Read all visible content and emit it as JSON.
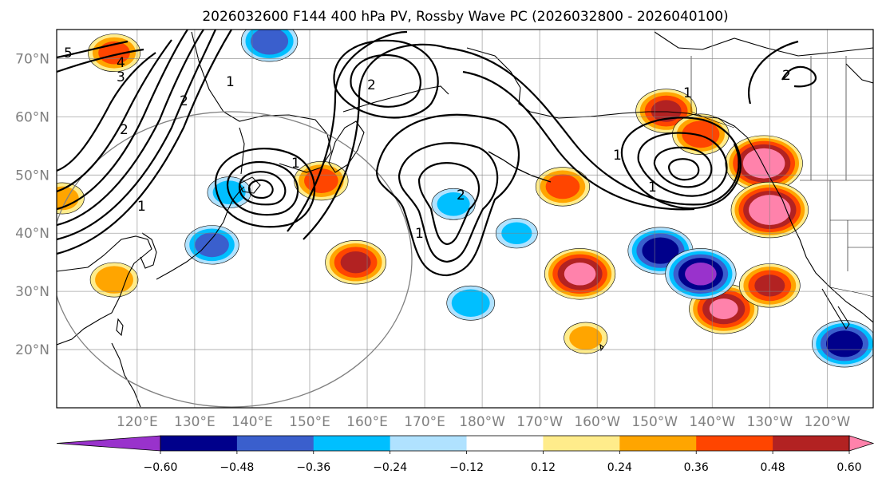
{
  "chart_data": {
    "type": "contour-map",
    "title": "2026032600 F144 400 hPa PV, Rossby Wave PC (2026032800 - 2026040100)",
    "projection": "plate-carree",
    "extent": {
      "lon": [
        106,
        248
      ],
      "lat": [
        10,
        75
      ]
    },
    "lat_ticks": [
      {
        "value": 70,
        "label": "70°N"
      },
      {
        "value": 60,
        "label": "60°N"
      },
      {
        "value": 50,
        "label": "50°N"
      },
      {
        "value": 40,
        "label": "40°N"
      },
      {
        "value": 30,
        "label": "30°N"
      },
      {
        "value": 20,
        "label": "20°N"
      }
    ],
    "lon_ticks": [
      {
        "value": 120,
        "label": "120°E"
      },
      {
        "value": 130,
        "label": "130°E"
      },
      {
        "value": 140,
        "label": "140°E"
      },
      {
        "value": 150,
        "label": "150°E"
      },
      {
        "value": 160,
        "label": "160°E"
      },
      {
        "value": 170,
        "label": "170°E"
      },
      {
        "value": 180,
        "label": "180°W"
      },
      {
        "value": 190,
        "label": "170°W"
      },
      {
        "value": 200,
        "label": "160°W"
      },
      {
        "value": 210,
        "label": "150°W"
      },
      {
        "value": 220,
        "label": "140°W"
      },
      {
        "value": 230,
        "label": "130°W"
      },
      {
        "value": 240,
        "label": "120°W"
      }
    ],
    "colorbar": {
      "levels": [
        -0.6,
        -0.48,
        -0.36,
        -0.24,
        -0.12,
        0.12,
        0.24,
        0.36,
        0.48,
        0.6
      ],
      "tick_labels": [
        "−0.60",
        "−0.48",
        "−0.36",
        "−0.24",
        "−0.12",
        "0.12",
        "0.24",
        "0.36",
        "0.48",
        "0.60"
      ],
      "colors": [
        "#9932CC",
        "#00008B",
        "#3A5FCD",
        "#00BFFF",
        "#B0E2FF",
        "#FFFFFF",
        "#FFEC8B",
        "#FFA500",
        "#FF4500",
        "#B22222",
        "#FF82AB"
      ]
    },
    "pv_contour_labels": [
      "1",
      "2",
      "3",
      "4",
      "5"
    ],
    "anomalies": [
      {
        "lon": 212,
        "lat": 61,
        "sign": 1,
        "peak": 0.5
      },
      {
        "lon": 218,
        "lat": 57,
        "sign": 1,
        "peak": 0.45
      },
      {
        "lon": 229,
        "lat": 52,
        "sign": 1,
        "peak": 0.7
      },
      {
        "lon": 230,
        "lat": 44,
        "sign": 1,
        "peak": 0.7
      },
      {
        "lon": 222,
        "lat": 27,
        "sign": 1,
        "peak": 0.6
      },
      {
        "lon": 230,
        "lat": 31,
        "sign": 1,
        "peak": 0.5
      },
      {
        "lon": 197,
        "lat": 33,
        "sign": 1,
        "peak": 0.62
      },
      {
        "lon": 158,
        "lat": 35,
        "sign": 1,
        "peak": 0.5
      },
      {
        "lon": 152,
        "lat": 49,
        "sign": 1,
        "peak": 0.42
      },
      {
        "lon": 194,
        "lat": 48,
        "sign": 1,
        "peak": 0.42
      },
      {
        "lon": 198,
        "lat": 22,
        "sign": 1,
        "peak": 0.3
      },
      {
        "lon": 116,
        "lat": 71,
        "sign": 1,
        "peak": 0.4
      },
      {
        "lon": 107,
        "lat": 46,
        "sign": 1,
        "peak": 0.3
      },
      {
        "lon": 116,
        "lat": 32,
        "sign": 1,
        "peak": 0.35
      },
      {
        "lon": 211,
        "lat": 37,
        "sign": -1,
        "peak": 0.55
      },
      {
        "lon": 218,
        "lat": 33,
        "sign": -1,
        "peak": 0.62
      },
      {
        "lon": 143,
        "lat": 73,
        "sign": -1,
        "peak": 0.45
      },
      {
        "lon": 136,
        "lat": 47,
        "sign": -1,
        "peak": 0.3
      },
      {
        "lon": 133,
        "lat": 38,
        "sign": -1,
        "peak": 0.42
      },
      {
        "lon": 175,
        "lat": 45,
        "sign": -1,
        "peak": 0.3
      },
      {
        "lon": 186,
        "lat": 40,
        "sign": -1,
        "peak": 0.28
      },
      {
        "lon": 243,
        "lat": 21,
        "sign": -1,
        "peak": 0.55
      },
      {
        "lon": 178,
        "lat": 28,
        "sign": -1,
        "peak": 0.35
      }
    ]
  }
}
